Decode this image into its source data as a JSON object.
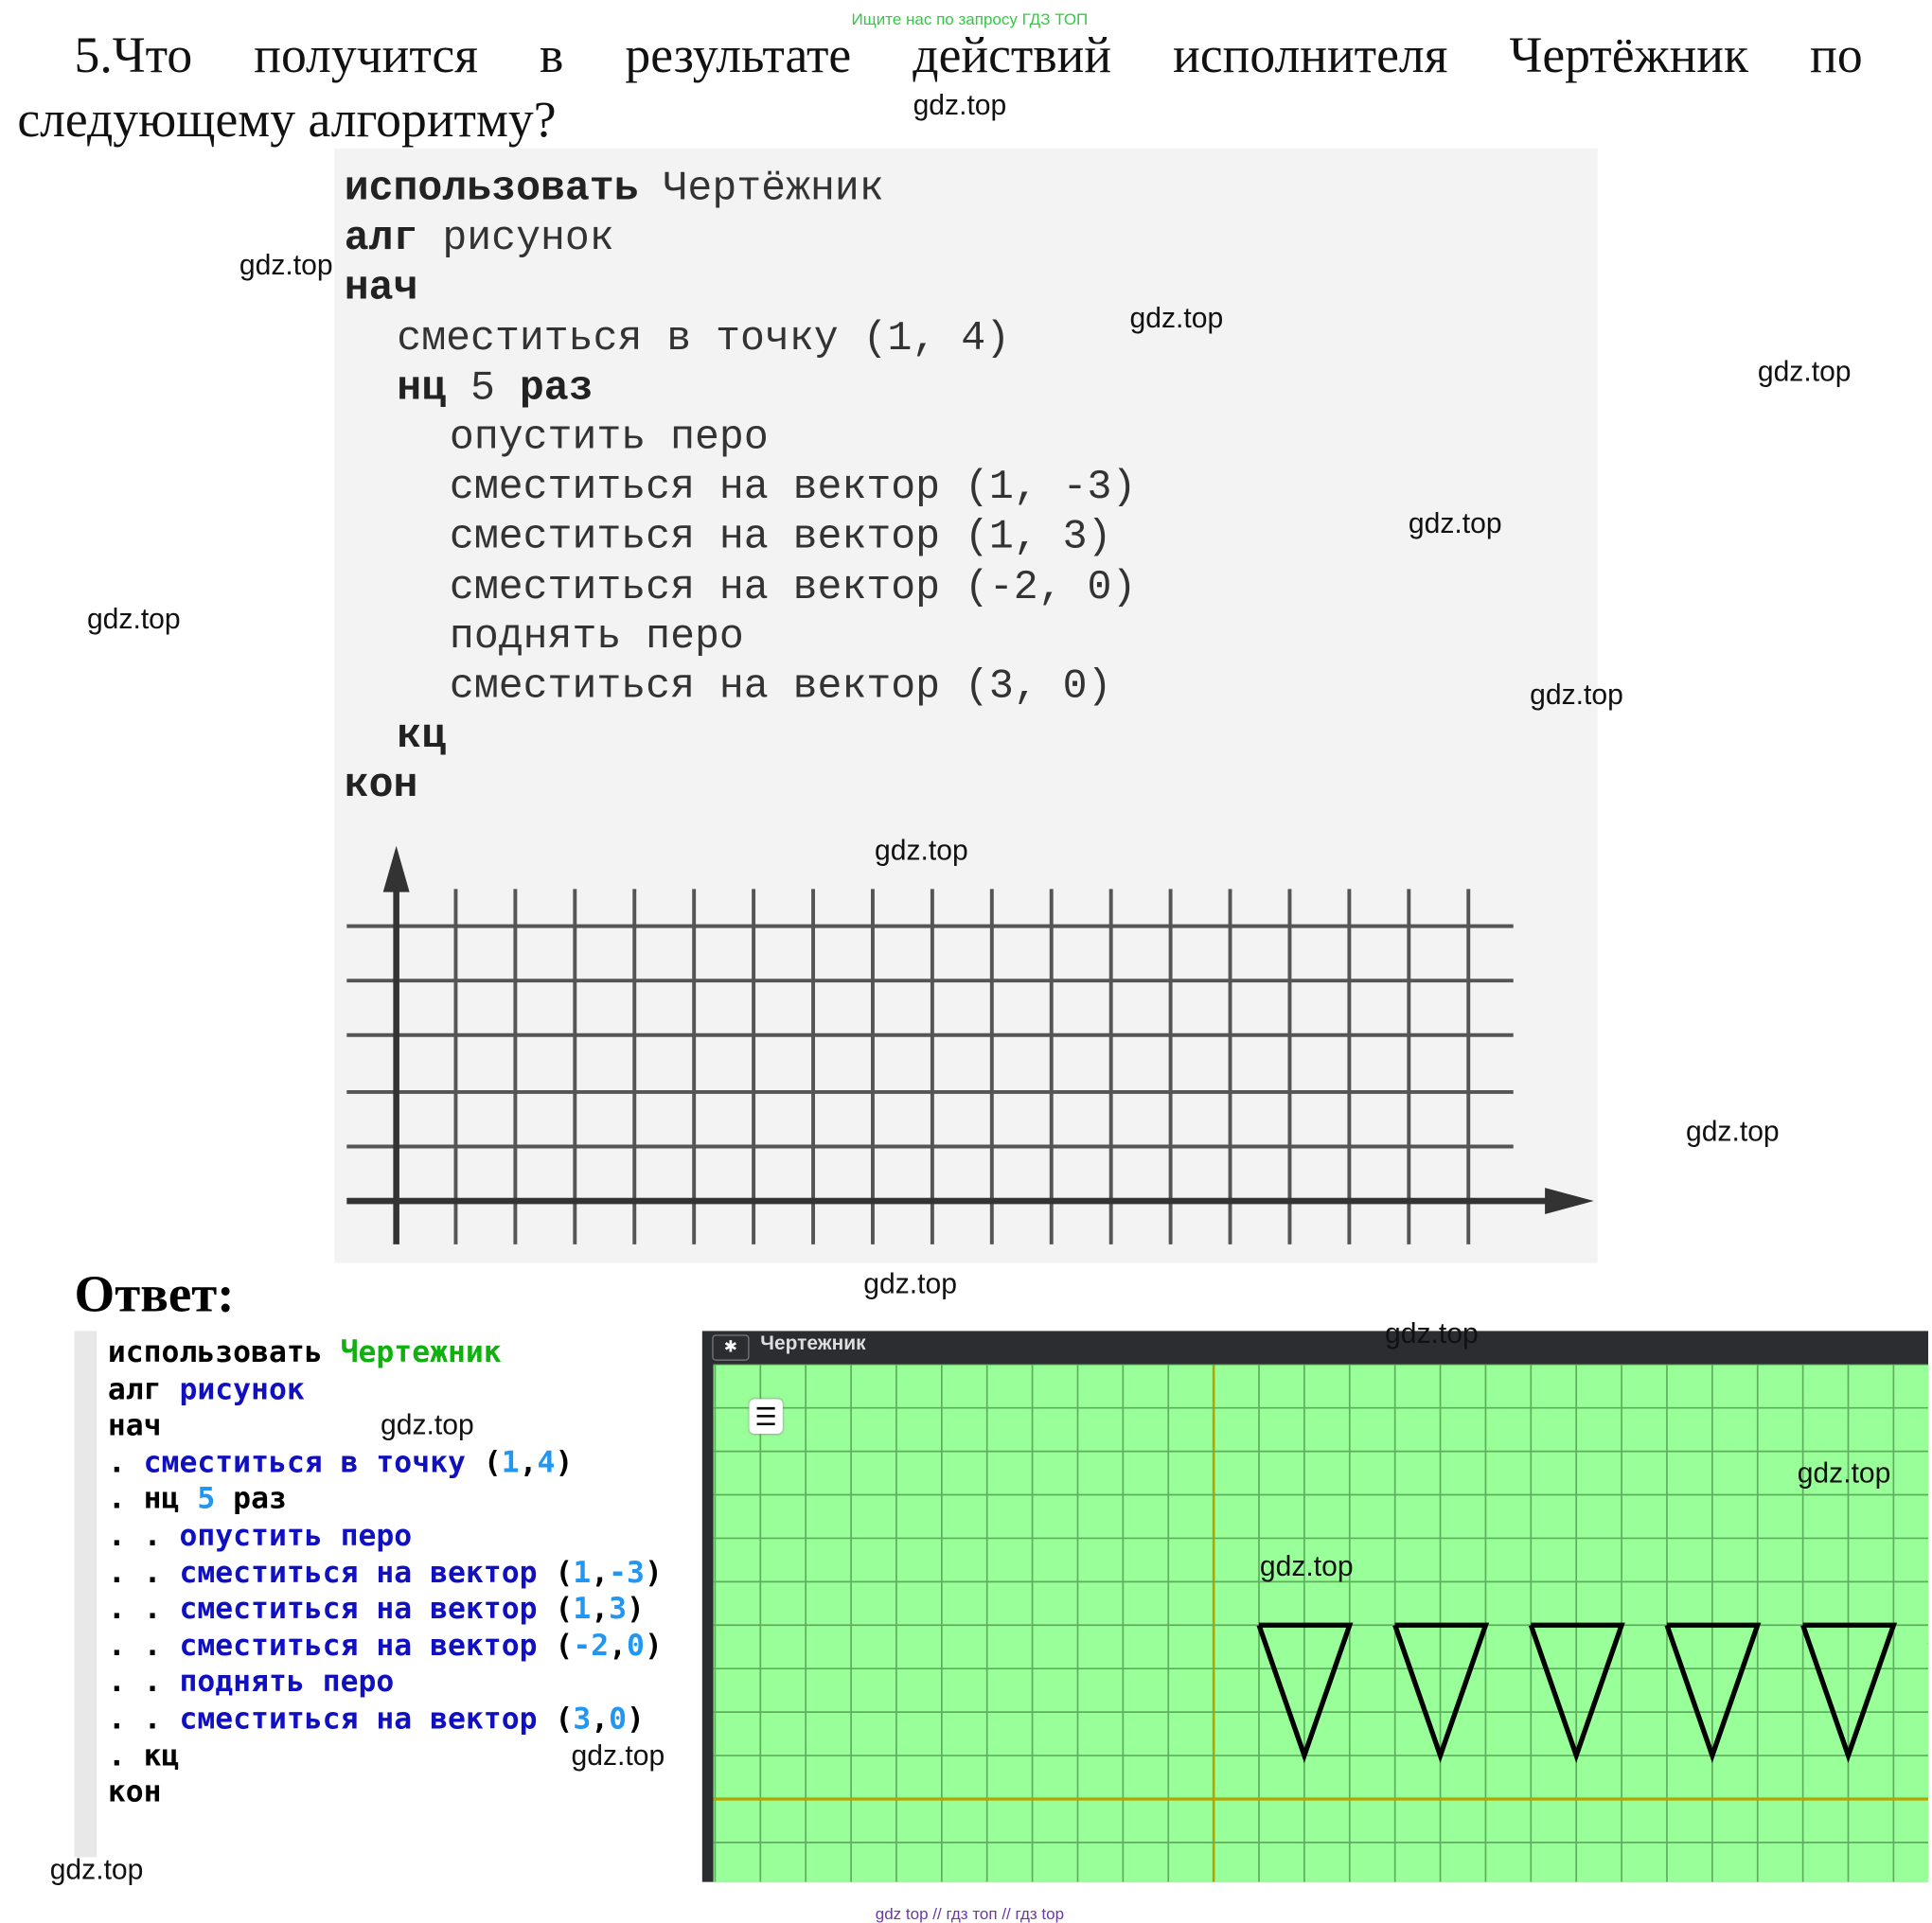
{
  "top_note": "Ищите нас по запросу ГДЗ ТОП",
  "question": {
    "line1_words": [
      "5.Что",
      "получится",
      "в",
      "результате",
      "действий",
      "исполнителя",
      "Чертёжник",
      "по"
    ],
    "line2": "следующему алгоритму?"
  },
  "book_code": [
    {
      "bold": "использовать",
      "rest": " Чертёжник",
      "indent": 0
    },
    {
      "bold": "алг",
      "rest": " рисунок",
      "indent": 0
    },
    {
      "bold": "нач",
      "rest": "",
      "indent": 0
    },
    {
      "bold": "",
      "rest": "сместиться в точку (1, 4)",
      "indent": 1
    },
    {
      "bold": "нц",
      "rest": " 5 ",
      "bold2": "раз",
      "indent": 1
    },
    {
      "bold": "",
      "rest": "опустить перо",
      "indent": 2
    },
    {
      "bold": "",
      "rest": "сместиться на вектор (1, -3)",
      "indent": 2
    },
    {
      "bold": "",
      "rest": "сместиться на вектор (1, 3)",
      "indent": 2
    },
    {
      "bold": "",
      "rest": "сместиться на вектор (-2, 0)",
      "indent": 2
    },
    {
      "bold": "",
      "rest": "поднять перо",
      "indent": 2
    },
    {
      "bold": "",
      "rest": "сместиться на вектор (3, 0)",
      "indent": 2
    },
    {
      "bold": "кц",
      "rest": "",
      "indent": 1
    },
    {
      "bold": "кон",
      "rest": "",
      "indent": 0
    }
  ],
  "answer_label": "Ответ:",
  "answer_code": [
    [
      [
        "kw",
        "использовать "
      ],
      [
        "mod",
        "Чертежник"
      ]
    ],
    [
      [
        "kw",
        "алг "
      ],
      [
        "cmd",
        "рисунок"
      ]
    ],
    [
      [
        "kw",
        "нач"
      ]
    ],
    [
      [
        "kw",
        ". "
      ],
      [
        "cmd",
        "сместиться в точку "
      ],
      [
        "kw",
        "("
      ],
      [
        "num",
        "1"
      ],
      [
        "kw",
        ","
      ],
      [
        "num",
        "4"
      ],
      [
        "kw",
        ")"
      ]
    ],
    [
      [
        "kw",
        ". нц "
      ],
      [
        "num",
        "5"
      ],
      [
        "kw",
        " раз"
      ]
    ],
    [
      [
        "kw",
        ". . "
      ],
      [
        "cmd",
        "опустить перо"
      ]
    ],
    [
      [
        "kw",
        ". . "
      ],
      [
        "cmd",
        "сместиться на вектор "
      ],
      [
        "kw",
        "("
      ],
      [
        "num",
        "1"
      ],
      [
        "kw",
        ","
      ],
      [
        "num",
        "-3"
      ],
      [
        "kw",
        ")"
      ]
    ],
    [
      [
        "kw",
        ". . "
      ],
      [
        "cmd",
        "сместиться на вектор "
      ],
      [
        "kw",
        "("
      ],
      [
        "num",
        "1"
      ],
      [
        "kw",
        ","
      ],
      [
        "num",
        "3"
      ],
      [
        "kw",
        ")"
      ]
    ],
    [
      [
        "kw",
        ". . "
      ],
      [
        "cmd",
        "сместиться на вектор "
      ],
      [
        "kw",
        "("
      ],
      [
        "num",
        "-2"
      ],
      [
        "kw",
        ","
      ],
      [
        "num",
        "0"
      ],
      [
        "kw",
        ")"
      ]
    ],
    [
      [
        "kw",
        ". . "
      ],
      [
        "cmd",
        "поднять перо"
      ]
    ],
    [
      [
        "kw",
        ". . "
      ],
      [
        "cmd",
        "сместиться на вектор "
      ],
      [
        "kw",
        "("
      ],
      [
        "num",
        "3"
      ],
      [
        "kw",
        ","
      ],
      [
        "num",
        "0"
      ],
      [
        "kw",
        ")"
      ]
    ],
    [
      [
        "kw",
        ". кц"
      ]
    ],
    [
      [
        "kw",
        "кон"
      ]
    ]
  ],
  "drawer_window": {
    "title": "Чертежник",
    "pin_icon": "pin-icon",
    "menu_icon": "hamburger-menu-icon",
    "canvas_color": "#99ff99",
    "axis_color": "#b5a300",
    "grid_color": "#5fae5f",
    "program": {
      "start": [
        1,
        4
      ],
      "repeat": 5,
      "pen_vectors": [
        [
          1,
          -3
        ],
        [
          1,
          3
        ],
        [
          -2,
          0
        ]
      ],
      "move_vector": [
        3,
        0
      ]
    }
  },
  "watermark": "gdz.top",
  "footer": "gdz top // гдз топ // гдз top"
}
